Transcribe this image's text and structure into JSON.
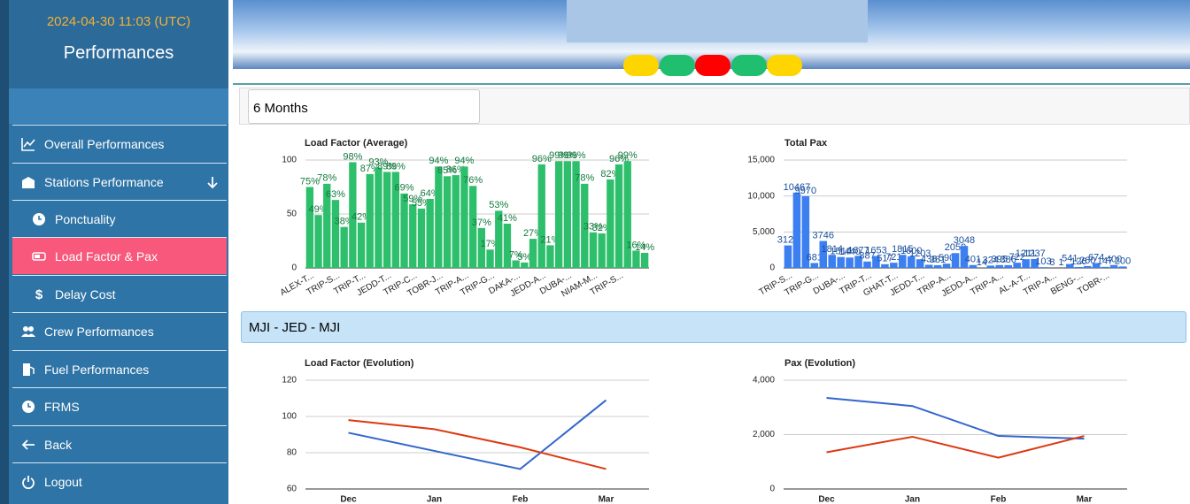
{
  "header": {
    "date": "2024-04-30 11:03 (UTC)",
    "title": "Performances"
  },
  "sidebar": {
    "items": [
      "Overall Performances",
      "Stations Performance",
      "Ponctuality",
      "Load Factor & Pax",
      "Delay Cost",
      "Crew Performances",
      "Fuel Performances",
      "FRMS",
      "Back",
      "Logout"
    ]
  },
  "filter": {
    "period": "6 Months",
    "route": "MJI - JED - MJI"
  },
  "chart_data": [
    {
      "type": "bar",
      "title": "Load Factor (Average)",
      "color": "#2ebf6c",
      "label_color": "#137a3e",
      "categories": [
        "ALEX-T...",
        null,
        null,
        "TRIP-S...",
        null,
        null,
        "TRIP-T...",
        null,
        null,
        "JEDD-T...",
        null,
        null,
        "TRIP-C...",
        null,
        null,
        "TOBR-J...",
        null,
        null,
        "TRIP-A...",
        null,
        null,
        "TRIP-G...",
        null,
        null,
        "DAKA-...",
        null,
        null,
        "JEDD-A...",
        null,
        null,
        "DUBA-...",
        null,
        null,
        "NIAM-M...",
        null,
        null,
        "TRIP-S...",
        null,
        null,
        null
      ],
      "values": [
        75,
        49,
        78,
        63,
        38,
        98,
        42,
        87,
        93,
        89,
        89,
        69,
        59,
        55,
        64,
        94,
        85,
        86,
        94,
        76,
        37,
        17,
        53,
        41,
        7,
        5,
        27,
        96,
        21,
        99,
        99,
        99,
        78,
        33,
        32,
        82,
        96,
        99,
        16,
        14
      ],
      "value_labels": [
        "75%",
        "49%",
        "78%",
        "63%",
        "38%",
        "98%",
        "42%",
        "87%",
        "93%",
        "89%",
        "89%",
        "69%",
        "59%",
        "55%",
        "64%",
        "94%",
        "85%",
        "86%",
        "94%",
        "76%",
        "37%",
        "17%",
        "53%",
        "41%",
        "7%",
        "5%",
        "27%",
        "96%",
        "21%",
        "99%",
        "99%",
        "99%",
        "78%",
        "33%",
        "32%",
        "82%",
        "96%",
        "99%",
        "16%",
        "14%"
      ],
      "ylim": [
        0,
        100
      ],
      "yticks": [
        0,
        50,
        100
      ],
      "grid": true
    },
    {
      "type": "bar",
      "title": "Total Pax",
      "color": "#3b7ff0",
      "label_color": "#1a4f9e",
      "categories": [
        "TRIP-S...",
        null,
        null,
        "TRIP-G...",
        null,
        null,
        "DUBA-...",
        null,
        null,
        "TRIP-T...",
        null,
        null,
        "GHAT-T...",
        null,
        null,
        "JEDD-T...",
        null,
        null,
        "TRIP-A...",
        null,
        null,
        "JEDD-A...",
        null,
        null,
        "TRIP-A...",
        null,
        null,
        "AL-A-T...",
        null,
        null,
        "TRIP-A...",
        null,
        null,
        "BENG-...",
        null,
        null,
        "TOBR-...",
        null,
        null
      ],
      "values": [
        3129,
        10467,
        9970,
        681,
        3746,
        1814,
        1514,
        1440,
        1677,
        887,
        1653,
        517,
        721,
        1815,
        1600,
        1203,
        438,
        381,
        590,
        2059,
        3048,
        401,
        14,
        324,
        395,
        386,
        722,
        1211,
        1237,
        103,
        8,
        1,
        541,
        126,
        260,
        674,
        147,
        400,
        200
      ],
      "ylim": [
        0,
        15000
      ],
      "yticks": [
        0,
        {
          "value": 5000,
          "label": "5,000"
        },
        {
          "value": 10000,
          "label": "10,000"
        },
        {
          "value": 15000,
          "label": "15,000"
        }
      ],
      "grid": true
    },
    {
      "type": "line",
      "title": "Load Factor (Evolution)",
      "categories": [
        "Dec",
        "Jan",
        "Feb",
        "Mar"
      ],
      "series": [
        {
          "color": "#3366cc",
          "values": [
            91,
            81,
            71,
            109
          ]
        },
        {
          "color": "#dc3912",
          "values": [
            98,
            93,
            83,
            71
          ]
        }
      ],
      "ylim": [
        60,
        120
      ],
      "yticks": [
        60,
        80,
        100,
        120
      ],
      "grid": true
    },
    {
      "type": "line",
      "title": "Pax (Evolution)",
      "categories": [
        "Dec",
        "Jan",
        "Feb",
        "Mar"
      ],
      "series": [
        {
          "color": "#3366cc",
          "values": [
            3350,
            3050,
            1950,
            1850
          ]
        },
        {
          "color": "#dc3912",
          "values": [
            1350,
            1920,
            1150,
            1950
          ]
        }
      ],
      "ylim": [
        0,
        4000
      ],
      "yticks": [
        0,
        {
          "value": 2000,
          "label": "2,000"
        },
        {
          "value": 4000,
          "label": "4,000"
        }
      ],
      "grid": true
    }
  ]
}
